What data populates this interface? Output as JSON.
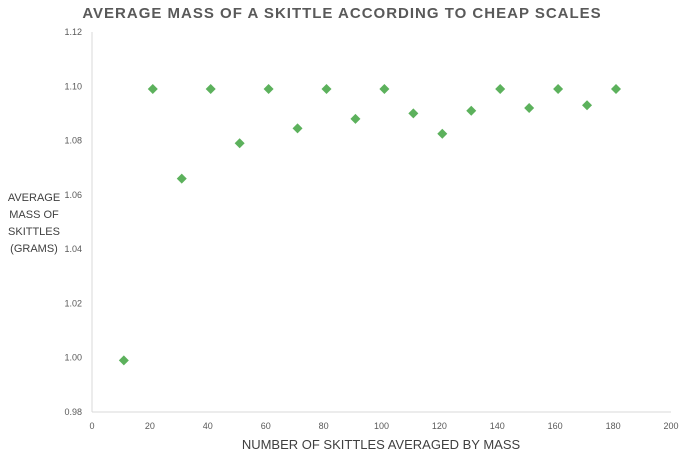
{
  "chart_data": {
    "type": "scatter",
    "title": "AVERAGE MASS OF A SKITTLE ACCORDING TO CHEAP SCALES",
    "xlabel": "NUMBER OF SKITTLES AVERAGED BY MASS",
    "ylabel_lines": [
      "AVERAGE",
      "MASS OF",
      "SKITTLES",
      "(GRAMS)"
    ],
    "xlim": [
      0,
      200
    ],
    "ylim": [
      0.98,
      1.12
    ],
    "xticks": [
      0,
      20,
      40,
      60,
      80,
      100,
      120,
      140,
      160,
      180,
      200
    ],
    "yticks": [
      0.98,
      1.0,
      1.02,
      1.04,
      1.06,
      1.08,
      1.1,
      1.12
    ],
    "ytick_labels": [
      "0.98",
      "1.00",
      "1.02",
      "1.04",
      "1.06",
      "1.08",
      "1.10",
      "1.12"
    ],
    "marker_color": "#5cb15c",
    "x": [
      11,
      21,
      31,
      41,
      51,
      61,
      71,
      81,
      91,
      101,
      111,
      121,
      131,
      141,
      151,
      161,
      171,
      181
    ],
    "y": [
      0.999,
      1.099,
      1.066,
      1.099,
      1.079,
      1.099,
      1.0845,
      1.099,
      1.088,
      1.099,
      1.09,
      1.0825,
      1.091,
      1.099,
      1.092,
      1.099,
      1.093,
      1.099
    ]
  }
}
